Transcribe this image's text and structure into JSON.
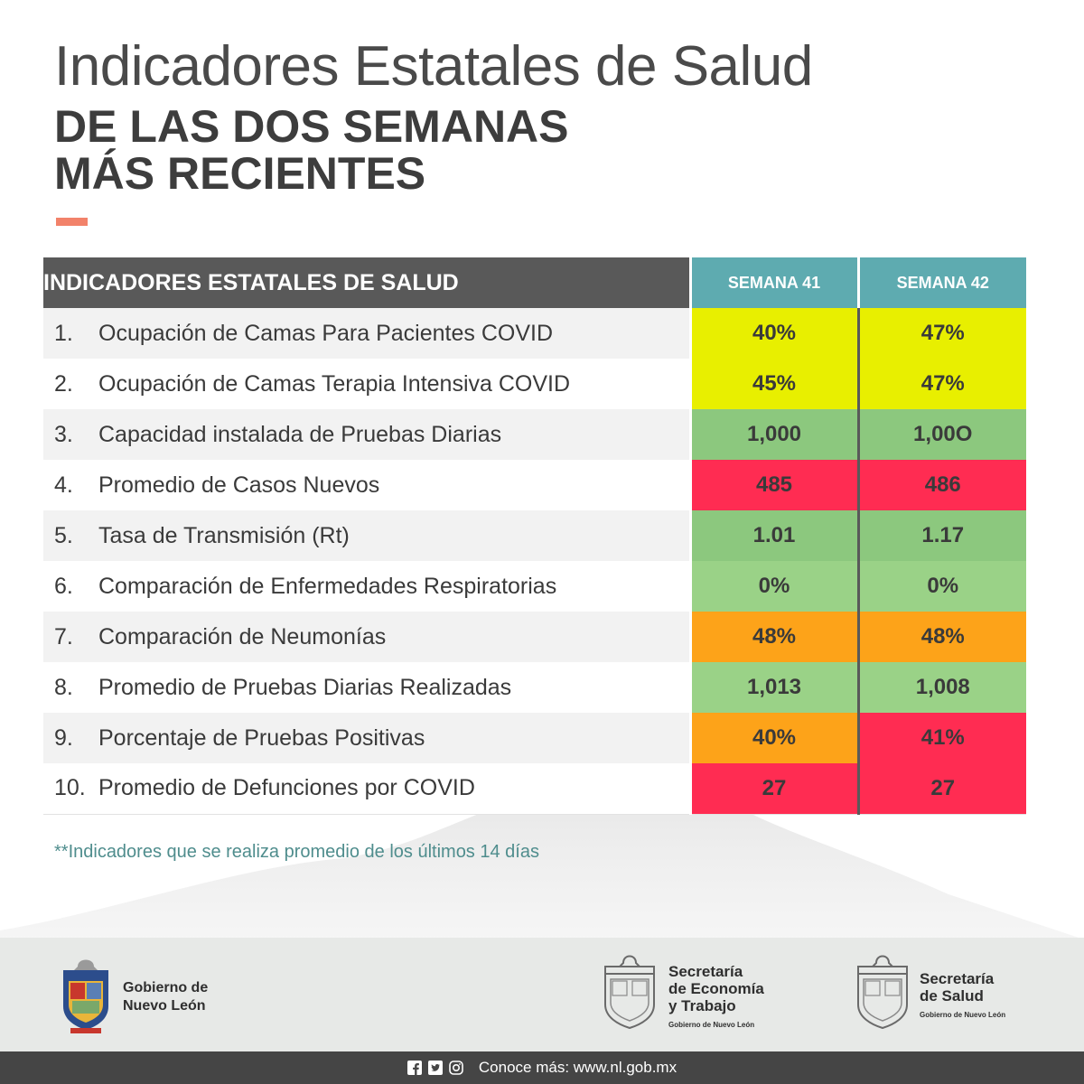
{
  "header": {
    "title_line1": "Indicadores Estatales de Salud",
    "title_line2": "DE LAS DOS SEMANAS",
    "title_line3": "MÁS RECIENTES",
    "accent_color": "#f2826a"
  },
  "table": {
    "header_label": "INDICADORES ESTATALES DE SALUD",
    "weeks": [
      "SEMANA 41",
      "SEMANA 42"
    ],
    "rows": [
      {
        "num": "1.",
        "label": "Ocupación de Camas Para Pacientes COVID",
        "w41": "40%",
        "w42": "47%",
        "c41": "yellow",
        "c42": "yellow"
      },
      {
        "num": "2.",
        "label": "Ocupación de Camas Terapia Intensiva COVID",
        "w41": "45%",
        "w42": "47%",
        "c41": "yellow",
        "c42": "yellow"
      },
      {
        "num": "3.",
        "label": "Capacidad instalada de Pruebas Diarias",
        "w41": "1,000",
        "w42": "1,00O",
        "c41": "green",
        "c42": "green"
      },
      {
        "num": "4.",
        "label": "Promedio de Casos Nuevos",
        "w41": "485",
        "w42": "486",
        "c41": "red",
        "c42": "red"
      },
      {
        "num": "5.",
        "label": "Tasa de Transmisión (Rt)",
        "w41": "1.01",
        "w42": "1.17",
        "c41": "green",
        "c42": "green"
      },
      {
        "num": "6.",
        "label": "Comparación de Enfermedades Respiratorias",
        "w41": "0%",
        "w42": "0%",
        "c41": "lightgreen",
        "c42": "lightgreen"
      },
      {
        "num": "7.",
        "label": "Comparación de Neumonías",
        "w41": "48%",
        "w42": "48%",
        "c41": "orange",
        "c42": "orange"
      },
      {
        "num": "8.",
        "label": "Promedio de Pruebas Diarias Realizadas",
        "w41": "1,013",
        "w42": "1,008",
        "c41": "lightgreen",
        "c42": "lightgreen"
      },
      {
        "num": "9.",
        "label": "Porcentaje de Pruebas Positivas",
        "w41": "40%",
        "w42": "41%",
        "c41": "orange",
        "c42": "red"
      },
      {
        "num": "10.",
        "label": "Promedio de Defunciones por COVID",
        "w41": "27",
        "w42": "27",
        "c41": "red",
        "c42": "red"
      }
    ]
  },
  "footnote": "**Indicadores que se realiza promedio de los últimos 14 días",
  "logos": {
    "gobierno": {
      "line1": "Gobierno de",
      "line2": "Nuevo León"
    },
    "economia": {
      "line1": "Secretaría",
      "line2": "de Economía",
      "line3": "y Trabajo",
      "small": "Gobierno de Nuevo León"
    },
    "salud": {
      "line1": "Secretaría",
      "line2": "de Salud",
      "small": "Gobierno de Nuevo León"
    }
  },
  "bottom_bar": {
    "text": "Conoce más: www.nl.gob.mx",
    "icons": [
      "facebook-icon",
      "twitter-icon",
      "instagram-icon"
    ]
  }
}
